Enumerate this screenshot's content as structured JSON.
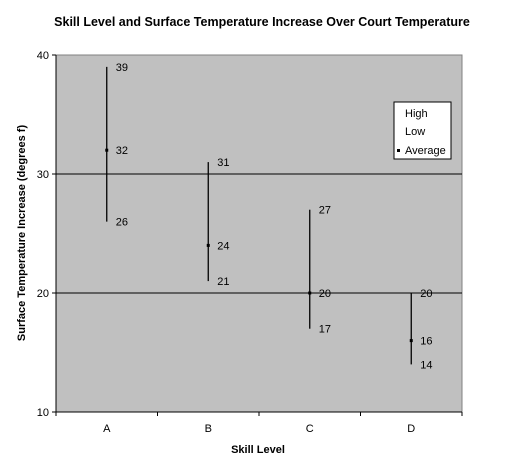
{
  "chart_data": {
    "type": "stock-high-low-average",
    "title": "Skill Level and Surface Temperature Increase Over Court Temperature",
    "xlabel": "Skill Level",
    "ylabel": "Surface Temperature Increase (degrees f)",
    "categories": [
      "A",
      "B",
      "C",
      "D"
    ],
    "ylim": [
      10,
      40
    ],
    "yticks": [
      10,
      20,
      30,
      40
    ],
    "gridlines": [
      20,
      30
    ],
    "plot_background": "#c0c0c0",
    "legend_position": "top-right",
    "series": [
      {
        "name": "High",
        "values": [
          39,
          31,
          27,
          20
        ]
      },
      {
        "name": "Low",
        "values": [
          26,
          21,
          17,
          14
        ]
      },
      {
        "name": "Average",
        "values": [
          32,
          24,
          20,
          16
        ]
      }
    ],
    "legend": [
      "High",
      "Low",
      "Average"
    ]
  }
}
